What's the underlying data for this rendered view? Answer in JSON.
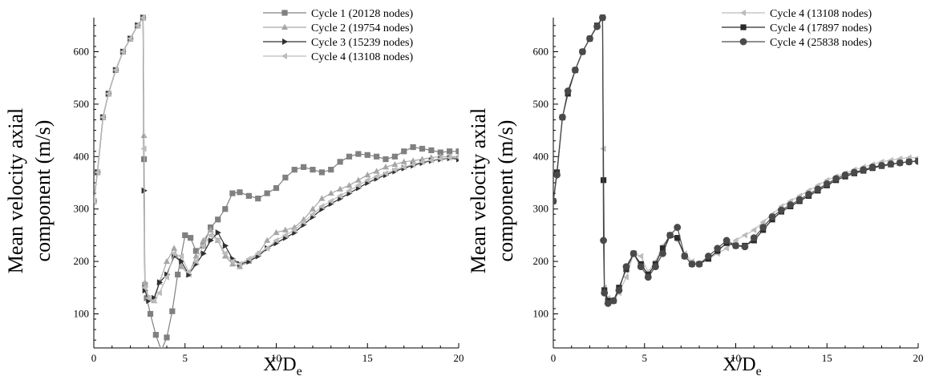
{
  "chart_data": [
    {
      "type": "line",
      "ylabel_lines": [
        "Mean velocity axial",
        "component (m/s)"
      ],
      "xlabel_main": "X/D",
      "xlabel_sub": "e",
      "xlim": [
        0,
        20
      ],
      "ylim": [
        35,
        665
      ],
      "xticks": [
        0,
        5,
        10,
        15,
        20
      ],
      "yticks": [
        100,
        200,
        300,
        400,
        500,
        600
      ],
      "legend_position": "top-right",
      "grid": false,
      "series": [
        {
          "name": "Cycle 1 (20128 nodes)",
          "color": "#808080",
          "marker": "square",
          "x": [
            0,
            0.2,
            0.5,
            0.8,
            1.2,
            1.6,
            2.0,
            2.4,
            2.7,
            2.75,
            2.8,
            2.9,
            3.1,
            3.4,
            3.7,
            4.0,
            4.3,
            4.6,
            5.0,
            5.3,
            5.6,
            6.0,
            6.4,
            6.8,
            7.2,
            7.6,
            8.0,
            8.5,
            9.0,
            9.5,
            10.0,
            10.5,
            11.0,
            11.5,
            12.0,
            12.5,
            13.0,
            13.5,
            14.0,
            14.5,
            15.0,
            15.5,
            16.0,
            16.5,
            17.0,
            17.5,
            18.0,
            18.5,
            19.0,
            19.5,
            20.0
          ],
          "y": [
            315,
            370,
            475,
            520,
            565,
            600,
            625,
            650,
            665,
            395,
            155,
            130,
            100,
            60,
            30,
            55,
            105,
            175,
            250,
            245,
            220,
            230,
            265,
            280,
            300,
            330,
            332,
            325,
            320,
            330,
            340,
            360,
            375,
            380,
            375,
            370,
            375,
            390,
            400,
            405,
            403,
            400,
            395,
            400,
            410,
            418,
            415,
            412,
            408,
            410,
            410
          ]
        },
        {
          "name": "Cycle 2 (19754 nodes)",
          "color": "#a6a6a6",
          "marker": "triangle-up",
          "x": [
            0,
            0.2,
            0.5,
            0.8,
            1.2,
            1.6,
            2.0,
            2.4,
            2.7,
            2.75,
            2.8,
            3.0,
            3.3,
            3.6,
            4.0,
            4.4,
            4.8,
            5.2,
            5.6,
            6.0,
            6.4,
            6.8,
            7.2,
            7.6,
            8.0,
            8.5,
            9.0,
            9.5,
            10.0,
            10.5,
            11.0,
            11.5,
            12.0,
            12.5,
            13.0,
            13.5,
            14.0,
            14.5,
            15.0,
            15.5,
            16.0,
            16.5,
            17.0,
            17.5,
            18.0,
            18.5,
            19.0,
            19.5,
            20.0
          ],
          "y": [
            315,
            370,
            475,
            520,
            565,
            600,
            625,
            650,
            665,
            440,
            160,
            130,
            125,
            160,
            200,
            225,
            190,
            175,
            210,
            240,
            260,
            240,
            210,
            195,
            190,
            200,
            215,
            240,
            255,
            260,
            265,
            280,
            300,
            320,
            330,
            338,
            345,
            355,
            365,
            372,
            380,
            385,
            390,
            392,
            395,
            398,
            400,
            400,
            400
          ]
        },
        {
          "name": "Cycle 3 (15239 nodes)",
          "color": "#303030",
          "marker": "triangle-right",
          "x": [
            0,
            0.2,
            0.5,
            0.8,
            1.2,
            1.6,
            2.0,
            2.4,
            2.7,
            2.75,
            2.8,
            3.0,
            3.3,
            3.6,
            4.0,
            4.4,
            4.8,
            5.2,
            5.6,
            6.0,
            6.4,
            6.8,
            7.2,
            7.6,
            8.0,
            8.5,
            9.0,
            9.5,
            10.0,
            10.5,
            11.0,
            11.5,
            12.0,
            12.5,
            13.0,
            13.5,
            14.0,
            14.5,
            15.0,
            15.5,
            16.0,
            16.5,
            17.0,
            17.5,
            18.0,
            18.5,
            19.0,
            19.5,
            20.0
          ],
          "y": [
            315,
            370,
            475,
            520,
            565,
            600,
            625,
            650,
            665,
            335,
            145,
            125,
            130,
            160,
            175,
            210,
            200,
            175,
            195,
            215,
            240,
            255,
            230,
            205,
            195,
            200,
            210,
            225,
            235,
            245,
            255,
            270,
            285,
            300,
            310,
            320,
            330,
            340,
            350,
            358,
            365,
            372,
            378,
            383,
            388,
            392,
            395,
            397,
            395
          ]
        },
        {
          "name": "Cycle 4 (13108 nodes)",
          "color": "#bcbcbc",
          "marker": "triangle-left",
          "x": [
            0,
            0.2,
            0.5,
            0.8,
            1.2,
            1.6,
            2.0,
            2.4,
            2.7,
            2.75,
            2.8,
            3.0,
            3.3,
            3.6,
            4.0,
            4.4,
            4.8,
            5.2,
            5.6,
            6.0,
            6.4,
            6.8,
            7.2,
            7.6,
            8.0,
            8.5,
            9.0,
            9.5,
            10.0,
            10.5,
            11.0,
            11.5,
            12.0,
            12.5,
            13.0,
            13.5,
            14.0,
            14.5,
            15.0,
            15.5,
            16.0,
            16.5,
            17.0,
            17.5,
            18.0,
            18.5,
            19.0,
            19.5,
            20.0
          ],
          "y": [
            315,
            370,
            475,
            520,
            565,
            600,
            625,
            650,
            665,
            415,
            150,
            130,
            125,
            140,
            170,
            215,
            210,
            180,
            200,
            230,
            250,
            240,
            215,
            200,
            195,
            205,
            215,
            225,
            240,
            250,
            260,
            275,
            290,
            305,
            315,
            325,
            335,
            345,
            355,
            362,
            368,
            375,
            380,
            385,
            390,
            393,
            396,
            398,
            398
          ]
        }
      ]
    },
    {
      "type": "line",
      "ylabel_lines": [
        "Mean velocity axial",
        "component (m/s)"
      ],
      "xlabel_main": "X/D",
      "xlabel_sub": "e",
      "xlim": [
        0,
        20
      ],
      "ylim": [
        35,
        665
      ],
      "xticks": [
        0,
        5,
        10,
        15,
        20
      ],
      "yticks": [
        100,
        200,
        300,
        400,
        500,
        600
      ],
      "legend_position": "top-right",
      "grid": false,
      "series": [
        {
          "name": "Cycle 4 (13108 nodes)",
          "color": "#bcbcbc",
          "marker": "triangle-left",
          "x": [
            0,
            0.2,
            0.5,
            0.8,
            1.2,
            1.6,
            2.0,
            2.4,
            2.7,
            2.75,
            2.8,
            3.0,
            3.3,
            3.6,
            4.0,
            4.4,
            4.8,
            5.2,
            5.6,
            6.0,
            6.4,
            6.8,
            7.2,
            7.6,
            8.0,
            8.5,
            9.0,
            9.5,
            10.0,
            10.5,
            11.0,
            11.5,
            12.0,
            12.5,
            13.0,
            13.5,
            14.0,
            14.5,
            15.0,
            15.5,
            16.0,
            16.5,
            17.0,
            17.5,
            18.0,
            18.5,
            19.0,
            19.5,
            20.0
          ],
          "y": [
            315,
            370,
            475,
            520,
            565,
            600,
            625,
            650,
            665,
            415,
            150,
            130,
            125,
            140,
            170,
            215,
            210,
            180,
            200,
            230,
            250,
            240,
            215,
            200,
            195,
            205,
            215,
            225,
            240,
            250,
            260,
            275,
            290,
            305,
            315,
            325,
            335,
            345,
            355,
            362,
            368,
            375,
            380,
            385,
            390,
            393,
            396,
            398,
            398
          ]
        },
        {
          "name": "Cycle 4 (17897 nodes)",
          "color": "#2a2a2a",
          "marker": "square",
          "x": [
            0,
            0.2,
            0.5,
            0.8,
            1.2,
            1.6,
            2.0,
            2.4,
            2.7,
            2.75,
            2.8,
            3.0,
            3.3,
            3.6,
            4.0,
            4.4,
            4.8,
            5.2,
            5.6,
            6.0,
            6.4,
            6.8,
            7.2,
            7.6,
            8.0,
            8.5,
            9.0,
            9.5,
            10.0,
            10.5,
            11.0,
            11.5,
            12.0,
            12.5,
            13.0,
            13.5,
            14.0,
            14.5,
            15.0,
            15.5,
            16.0,
            16.5,
            17.0,
            17.5,
            18.0,
            18.5,
            19.0,
            19.5,
            20.0
          ],
          "y": [
            315,
            370,
            475,
            520,
            565,
            600,
            625,
            650,
            665,
            355,
            145,
            125,
            125,
            150,
            185,
            215,
            195,
            175,
            195,
            225,
            250,
            245,
            210,
            195,
            195,
            205,
            220,
            235,
            230,
            230,
            240,
            260,
            280,
            295,
            305,
            315,
            325,
            335,
            345,
            355,
            362,
            368,
            373,
            378,
            382,
            385,
            388,
            390,
            392
          ]
        },
        {
          "name": "Cycle 4 (25838 nodes)",
          "color": "#4a4a4a",
          "marker": "circle",
          "x": [
            0,
            0.2,
            0.5,
            0.8,
            1.2,
            1.6,
            2.0,
            2.4,
            2.7,
            2.75,
            2.8,
            3.0,
            3.3,
            3.6,
            4.0,
            4.4,
            4.8,
            5.2,
            5.6,
            6.0,
            6.4,
            6.8,
            7.2,
            7.6,
            8.0,
            8.5,
            9.0,
            9.5,
            10.0,
            10.5,
            11.0,
            11.5,
            12.0,
            12.5,
            13.0,
            13.5,
            14.0,
            14.5,
            15.0,
            15.5,
            16.0,
            16.5,
            17.0,
            17.5,
            18.0,
            18.5,
            19.0,
            19.5,
            20.0
          ],
          "y": [
            315,
            365,
            475,
            525,
            565,
            600,
            625,
            648,
            665,
            240,
            140,
            120,
            125,
            145,
            190,
            215,
            190,
            170,
            190,
            215,
            250,
            265,
            210,
            195,
            195,
            210,
            225,
            240,
            230,
            228,
            245,
            265,
            285,
            298,
            308,
            318,
            328,
            338,
            348,
            358,
            365,
            370,
            375,
            380,
            383,
            386,
            388,
            390,
            391
          ]
        }
      ]
    }
  ]
}
